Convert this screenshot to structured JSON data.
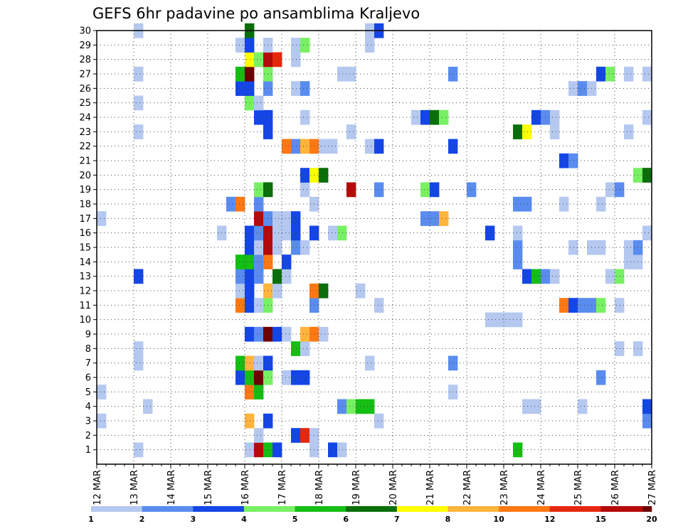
{
  "chart_data": {
    "type": "heatmap",
    "title": "GEFS 6hr padavine po ansamblima Kraljevo",
    "xlabel": "",
    "ylabel": "",
    "x_ticks": [
      "12 MAR",
      "13 MAR",
      "14 MAR",
      "15 MAR",
      "16 MAR",
      "17 MAR",
      "18 MAR",
      "19 MAR",
      "20 MAR",
      "21 MAR",
      "22 MAR",
      "23 MAR",
      "24 MAR",
      "25 MAR",
      "26 MAR",
      "27 MAR"
    ],
    "y_ticks": [
      "1",
      "2",
      "3",
      "4",
      "5",
      "6",
      "7",
      "8",
      "9",
      "10",
      "11",
      "12",
      "13",
      "14",
      "15",
      "16",
      "17",
      "18",
      "19",
      "20",
      "21",
      "22",
      "23",
      "24",
      "25",
      "26",
      "27",
      "28",
      "29",
      "30"
    ],
    "x_unit": "6-hour step from 12 MAR 00z",
    "xlim": [
      0,
      60
    ],
    "ylim": [
      0,
      30
    ],
    "grid": true,
    "legend": {
      "position": "bottom",
      "labels": [
        "1",
        "2",
        "3",
        "4",
        "5",
        "6",
        "7",
        "8",
        "10",
        "12",
        "15",
        "20"
      ],
      "colors": [
        "#b4c8f0",
        "#5a8cf0",
        "#1446e6",
        "#78f064",
        "#14be14",
        "#0a6e0a",
        "#ffff00",
        "#ffb43c",
        "#ff7814",
        "#e6280a",
        "#b40a0a",
        "#6e0000"
      ]
    },
    "cells": [
      {
        "m": 1,
        "t": [
          [
            4,
            1
          ],
          [
            16,
            1
          ],
          [
            17,
            11
          ],
          [
            18,
            5
          ],
          [
            19,
            3
          ],
          [
            23,
            1
          ],
          [
            25,
            3
          ],
          [
            26,
            1
          ],
          [
            45,
            5
          ]
        ]
      },
      {
        "m": 2,
        "t": [
          [
            17,
            1
          ],
          [
            21,
            3
          ],
          [
            22,
            10
          ],
          [
            23,
            1
          ]
        ]
      },
      {
        "m": 3,
        "t": [
          [
            0,
            1
          ],
          [
            16,
            8
          ],
          [
            18,
            3
          ],
          [
            30,
            1
          ],
          [
            59,
            2
          ]
        ]
      },
      {
        "m": 4,
        "t": [
          [
            5,
            1
          ],
          [
            26,
            2
          ],
          [
            27,
            4
          ],
          [
            28,
            5
          ],
          [
            29,
            5
          ],
          [
            46,
            1
          ],
          [
            47,
            1
          ],
          [
            52,
            1
          ],
          [
            59,
            3
          ]
        ]
      },
      {
        "m": 5,
        "t": [
          [
            0,
            1
          ],
          [
            16,
            9
          ],
          [
            17,
            5
          ],
          [
            38,
            1
          ]
        ]
      },
      {
        "m": 6,
        "t": [
          [
            15,
            3
          ],
          [
            16,
            5
          ],
          [
            17,
            12
          ],
          [
            18,
            4
          ],
          [
            20,
            1
          ],
          [
            21,
            3
          ],
          [
            22,
            3
          ],
          [
            54,
            2
          ]
        ]
      },
      {
        "m": 7,
        "t": [
          [
            4,
            1
          ],
          [
            15,
            5
          ],
          [
            16,
            8
          ],
          [
            17,
            1
          ],
          [
            18,
            3
          ],
          [
            29,
            1
          ],
          [
            38,
            2
          ]
        ]
      },
      {
        "m": 8,
        "t": [
          [
            4,
            1
          ],
          [
            21,
            5
          ],
          [
            22,
            1
          ],
          [
            56,
            1
          ],
          [
            58,
            1
          ]
        ]
      },
      {
        "m": 9,
        "t": [
          [
            16,
            3
          ],
          [
            17,
            2
          ],
          [
            18,
            12
          ],
          [
            19,
            3
          ],
          [
            20,
            1
          ],
          [
            22,
            8
          ],
          [
            23,
            9
          ],
          [
            24,
            1
          ]
        ]
      },
      {
        "m": 10,
        "t": [
          [
            42,
            1
          ],
          [
            43,
            1
          ],
          [
            44,
            1
          ],
          [
            45,
            1
          ]
        ]
      },
      {
        "m": 11,
        "t": [
          [
            15,
            9
          ],
          [
            16,
            3
          ],
          [
            17,
            1
          ],
          [
            18,
            4
          ],
          [
            23,
            2
          ],
          [
            30,
            1
          ],
          [
            50,
            9
          ],
          [
            51,
            3
          ],
          [
            52,
            2
          ],
          [
            53,
            2
          ],
          [
            54,
            4
          ],
          [
            56,
            1
          ]
        ]
      },
      {
        "m": 12,
        "t": [
          [
            15,
            1
          ],
          [
            16,
            3
          ],
          [
            18,
            8
          ],
          [
            19,
            1
          ],
          [
            23,
            9
          ],
          [
            24,
            6
          ],
          [
            28,
            1
          ]
        ]
      },
      {
        "m": 13,
        "t": [
          [
            4,
            3
          ],
          [
            15,
            2
          ],
          [
            16,
            3
          ],
          [
            17,
            2
          ],
          [
            19,
            6
          ],
          [
            20,
            1
          ],
          [
            46,
            3
          ],
          [
            47,
            5
          ],
          [
            48,
            2
          ],
          [
            49,
            1
          ],
          [
            55,
            1
          ],
          [
            56,
            4
          ]
        ]
      },
      {
        "m": 14,
        "t": [
          [
            15,
            5
          ],
          [
            16,
            5
          ],
          [
            17,
            2
          ],
          [
            18,
            9
          ],
          [
            20,
            3
          ],
          [
            45,
            2
          ],
          [
            57,
            1
          ],
          [
            58,
            1
          ]
        ]
      },
      {
        "m": 15,
        "t": [
          [
            16,
            3
          ],
          [
            17,
            1
          ],
          [
            18,
            11
          ],
          [
            19,
            1
          ],
          [
            21,
            2
          ],
          [
            22,
            1
          ],
          [
            45,
            2
          ],
          [
            51,
            1
          ],
          [
            53,
            1
          ],
          [
            54,
            1
          ],
          [
            57,
            1
          ],
          [
            58,
            2
          ]
        ]
      },
      {
        "m": 16,
        "t": [
          [
            13,
            1
          ],
          [
            16,
            3
          ],
          [
            17,
            2
          ],
          [
            18,
            11
          ],
          [
            19,
            1
          ],
          [
            20,
            1
          ],
          [
            21,
            3
          ],
          [
            23,
            3
          ],
          [
            25,
            1
          ],
          [
            26,
            4
          ],
          [
            42,
            3
          ],
          [
            45,
            1
          ],
          [
            59,
            1
          ]
        ]
      },
      {
        "m": 17,
        "t": [
          [
            0,
            1
          ],
          [
            17,
            11
          ],
          [
            18,
            2
          ],
          [
            19,
            1
          ],
          [
            20,
            1
          ],
          [
            21,
            3
          ],
          [
            35,
            2
          ],
          [
            36,
            2
          ],
          [
            37,
            8
          ]
        ]
      },
      {
        "m": 18,
        "t": [
          [
            14,
            2
          ],
          [
            15,
            9
          ],
          [
            17,
            2
          ],
          [
            23,
            1
          ],
          [
            45,
            2
          ],
          [
            46,
            2
          ],
          [
            50,
            1
          ],
          [
            54,
            1
          ]
        ]
      },
      {
        "m": 19,
        "t": [
          [
            17,
            4
          ],
          [
            18,
            6
          ],
          [
            22,
            1
          ],
          [
            27,
            11
          ],
          [
            30,
            2
          ],
          [
            35,
            4
          ],
          [
            36,
            3
          ],
          [
            40,
            2
          ],
          [
            55,
            1
          ],
          [
            56,
            2
          ]
        ]
      },
      {
        "m": 20,
        "t": [
          [
            22,
            3
          ],
          [
            23,
            7
          ],
          [
            24,
            6
          ],
          [
            58,
            4
          ],
          [
            59,
            6
          ]
        ]
      },
      {
        "m": 21,
        "t": [
          [
            50,
            3
          ],
          [
            51,
            2
          ]
        ]
      },
      {
        "m": 22,
        "t": [
          [
            20,
            9
          ],
          [
            21,
            2
          ],
          [
            22,
            8
          ],
          [
            23,
            9
          ],
          [
            24,
            1
          ],
          [
            25,
            1
          ],
          [
            29,
            1
          ],
          [
            30,
            3
          ],
          [
            38,
            3
          ]
        ]
      },
      {
        "m": 23,
        "t": [
          [
            4,
            1
          ],
          [
            18,
            3
          ],
          [
            27,
            1
          ],
          [
            45,
            6
          ],
          [
            46,
            7
          ],
          [
            49,
            1
          ],
          [
            57,
            1
          ]
        ]
      },
      {
        "m": 24,
        "t": [
          [
            17,
            3
          ],
          [
            18,
            3
          ],
          [
            22,
            1
          ],
          [
            34,
            1
          ],
          [
            35,
            3
          ],
          [
            36,
            6
          ],
          [
            37,
            4
          ],
          [
            47,
            3
          ],
          [
            48,
            2
          ],
          [
            49,
            1
          ],
          [
            59,
            1
          ]
        ]
      },
      {
        "m": 25,
        "t": [
          [
            4,
            1
          ],
          [
            16,
            4
          ],
          [
            17,
            1
          ]
        ]
      },
      {
        "m": 26,
        "t": [
          [
            15,
            3
          ],
          [
            16,
            3
          ],
          [
            18,
            2
          ],
          [
            21,
            1
          ],
          [
            22,
            2
          ],
          [
            51,
            1
          ],
          [
            52,
            2
          ],
          [
            53,
            1
          ]
        ]
      },
      {
        "m": 27,
        "t": [
          [
            4,
            1
          ],
          [
            15,
            5
          ],
          [
            16,
            12
          ],
          [
            18,
            4
          ],
          [
            26,
            1
          ],
          [
            27,
            1
          ],
          [
            38,
            2
          ],
          [
            54,
            3
          ],
          [
            55,
            4
          ],
          [
            57,
            1
          ],
          [
            59,
            1
          ]
        ]
      },
      {
        "m": 28,
        "t": [
          [
            16,
            7
          ],
          [
            17,
            4
          ],
          [
            18,
            11
          ],
          [
            19,
            10
          ],
          [
            21,
            1
          ]
        ]
      },
      {
        "m": 29,
        "t": [
          [
            15,
            1
          ],
          [
            16,
            3
          ],
          [
            18,
            1
          ],
          [
            21,
            1
          ],
          [
            22,
            4
          ],
          [
            29,
            1
          ]
        ]
      },
      {
        "m": 30,
        "t": [
          [
            4,
            1
          ],
          [
            16,
            6
          ],
          [
            29,
            1
          ],
          [
            30,
            3
          ]
        ]
      }
    ]
  }
}
